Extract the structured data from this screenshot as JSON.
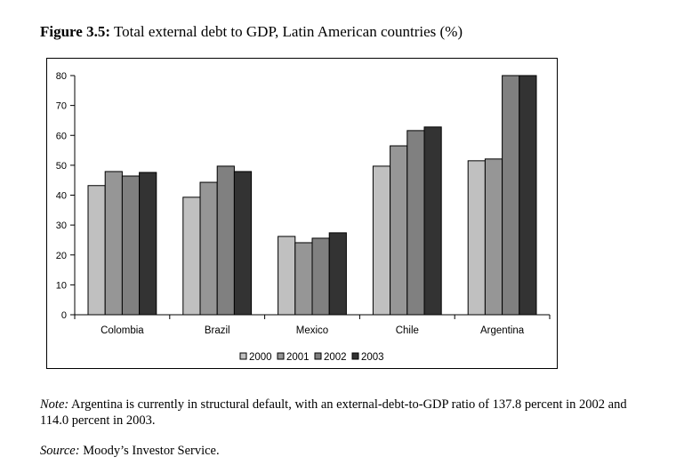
{
  "figure": {
    "label": "Figure 3.5:",
    "title": "Total external debt to GDP, Latin American countries (%)"
  },
  "note": {
    "label": "Note:",
    "text": "Argentina is currently in structural default, with an external-debt-to-GDP ratio of 137.8 percent in 2002 and 114.0 percent in 2003."
  },
  "source": {
    "label": "Source:",
    "text": "Moody’s Investor Service."
  },
  "chart_data": {
    "type": "bar",
    "title": "Total external debt to GDP, Latin American countries (%)",
    "xlabel": "",
    "ylabel": "",
    "ylim": [
      0,
      80
    ],
    "yticks": [
      0,
      10,
      20,
      30,
      40,
      50,
      60,
      70,
      80
    ],
    "grid": false,
    "legend_position": "bottom",
    "categories": [
      "Colombia",
      "Brazil",
      "Mexico",
      "Chile",
      "Argentina"
    ],
    "series": [
      {
        "name": "2000",
        "color": "#c0c0c0",
        "values": [
          43.2,
          39.3,
          26.2,
          49.7,
          51.5
        ]
      },
      {
        "name": "2001",
        "color": "#969696",
        "values": [
          47.9,
          44.3,
          24.1,
          56.5,
          52.1
        ]
      },
      {
        "name": "2002",
        "color": "#808080",
        "values": [
          46.4,
          49.7,
          25.6,
          61.6,
          137.8
        ]
      },
      {
        "name": "2003",
        "color": "#333333",
        "values": [
          47.6,
          47.9,
          27.4,
          62.8,
          114.0
        ]
      }
    ],
    "annotations": [
      "Argentina 2002 and 2003 bars truncated at axis maximum (80)"
    ]
  }
}
